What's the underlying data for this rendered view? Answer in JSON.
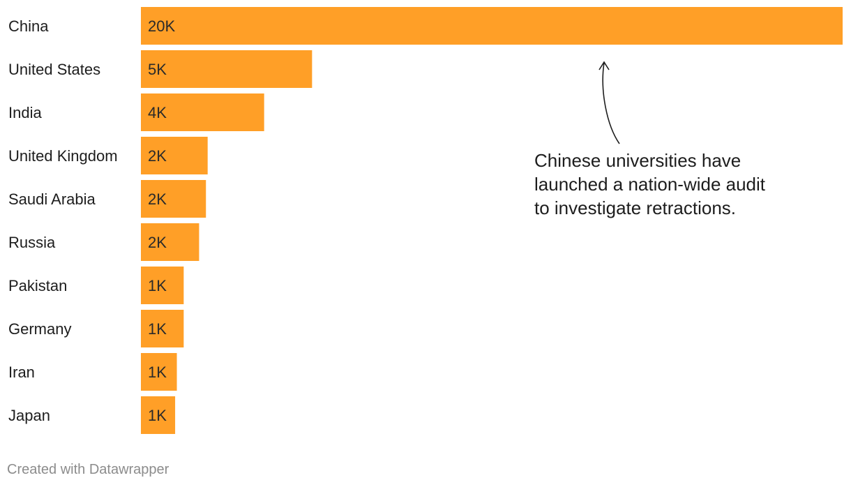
{
  "chart_data": {
    "type": "bar",
    "orientation": "horizontal",
    "categories": [
      "China",
      "United States",
      "India",
      "United Kingdom",
      "Saudi Arabia",
      "Russia",
      "Pakistan",
      "Germany",
      "Iran",
      "Japan"
    ],
    "values": [
      20500,
      5000,
      3600,
      1950,
      1900,
      1700,
      1250,
      1250,
      1050,
      1000
    ],
    "value_labels": [
      "20K",
      "5K",
      "4K",
      "2K",
      "2K",
      "2K",
      "1K",
      "1K",
      "1K",
      "1K"
    ],
    "xlim": [
      0,
      20500
    ],
    "grid": false,
    "bar_color": "#ff9f27",
    "annotation": {
      "lines": [
        "Chinese universities have",
        "launched a nation-wide audit",
        "to investigate retractions."
      ],
      "target_category": "China"
    }
  },
  "footer": {
    "credit": "Created with Datawrapper"
  }
}
